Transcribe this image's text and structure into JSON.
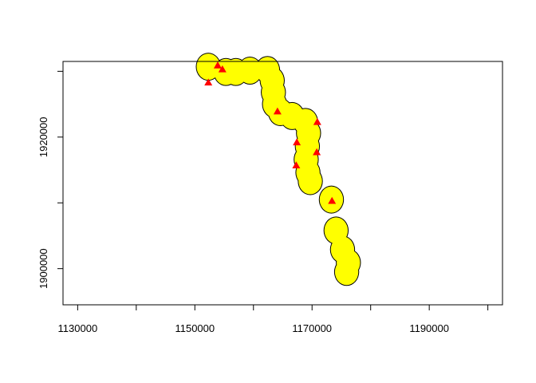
{
  "chart_data": {
    "type": "scatter",
    "title": "",
    "xlabel": "",
    "ylabel": "",
    "xlim": [
      1127500,
      1202500
    ],
    "ylim": [
      1894500,
      1931500
    ],
    "x_ticks": [
      1130000,
      1140000,
      1150000,
      1160000,
      1170000,
      1180000,
      1190000,
      1200000
    ],
    "x_tick_labels": [
      "1130000",
      "",
      "1150000",
      "",
      "1170000",
      "",
      "1190000",
      ""
    ],
    "y_ticks": [
      1900000,
      1910000,
      1920000,
      1930000
    ],
    "y_tick_labels": [
      "1900000",
      "",
      "1920000",
      ""
    ],
    "grid": false,
    "buffer_radius": 2000,
    "buffer_fill": "#ffff00",
    "buffer_stroke": "#000000",
    "point_color": "#ff0000",
    "point_shape": "triangle",
    "buffer_centers": [
      {
        "x": 1152300,
        "y": 1930700
      },
      {
        "x": 1155300,
        "y": 1929900
      },
      {
        "x": 1157000,
        "y": 1929900
      },
      {
        "x": 1159400,
        "y": 1930100
      },
      {
        "x": 1162400,
        "y": 1930200
      },
      {
        "x": 1163200,
        "y": 1928600
      },
      {
        "x": 1163400,
        "y": 1926800
      },
      {
        "x": 1163600,
        "y": 1925000
      },
      {
        "x": 1164600,
        "y": 1923800
      },
      {
        "x": 1166600,
        "y": 1923200
      },
      {
        "x": 1168900,
        "y": 1922300
      },
      {
        "x": 1169400,
        "y": 1920600
      },
      {
        "x": 1169200,
        "y": 1918600
      },
      {
        "x": 1169000,
        "y": 1916600
      },
      {
        "x": 1169300,
        "y": 1914600
      },
      {
        "x": 1169700,
        "y": 1913300
      },
      {
        "x": 1173300,
        "y": 1910500
      },
      {
        "x": 1174100,
        "y": 1905800
      },
      {
        "x": 1175200,
        "y": 1902900
      },
      {
        "x": 1176200,
        "y": 1900900
      },
      {
        "x": 1175900,
        "y": 1899500
      }
    ],
    "points": [
      {
        "x": 1153900,
        "y": 1930900
      },
      {
        "x": 1154700,
        "y": 1930300
      },
      {
        "x": 1152300,
        "y": 1928300
      },
      {
        "x": 1164100,
        "y": 1923900
      },
      {
        "x": 1170900,
        "y": 1922300
      },
      {
        "x": 1167400,
        "y": 1919200
      },
      {
        "x": 1170800,
        "y": 1917700
      },
      {
        "x": 1167300,
        "y": 1915700
      },
      {
        "x": 1173400,
        "y": 1910300
      }
    ]
  }
}
